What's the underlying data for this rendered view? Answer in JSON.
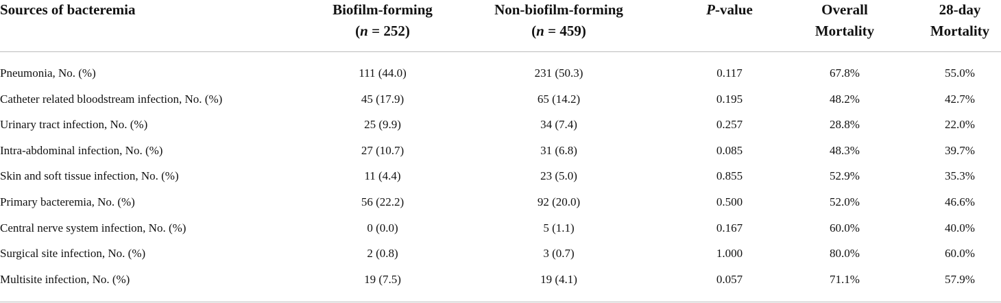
{
  "table": {
    "columns": [
      [
        [
          "Sources of bacteremia"
        ]
      ],
      [
        [
          "Biofilm-forming"
        ],
        [
          "(",
          {
            "text": "n",
            "italic": true
          },
          " = 252)"
        ]
      ],
      [
        [
          "Non-biofilm-forming"
        ],
        [
          "(",
          {
            "text": "n",
            "italic": true
          },
          " = 459)"
        ]
      ],
      [
        [
          {
            "text": "P",
            "italic": true
          },
          "-value"
        ]
      ],
      [
        [
          "Overall"
        ],
        [
          "Mortality"
        ]
      ],
      [
        [
          "28-day"
        ],
        [
          "Mortality"
        ]
      ]
    ],
    "rows": [
      [
        "Pneumonia, No. (%)",
        "111 (44.0)",
        "231 (50.3)",
        "0.117",
        "67.8%",
        "55.0%"
      ],
      [
        "Catheter related bloodstream infection, No. (%)",
        "45 (17.9)",
        "65 (14.2)",
        "0.195",
        "48.2%",
        "42.7%"
      ],
      [
        "Urinary tract infection, No. (%)",
        "25 (9.9)",
        "34 (7.4)",
        "0.257",
        "28.8%",
        "22.0%"
      ],
      [
        "Intra-abdominal infection, No. (%)",
        "27 (10.7)",
        "31 (6.8)",
        "0.085",
        "48.3%",
        "39.7%"
      ],
      [
        "Skin and soft tissue infection, No. (%)",
        "11 (4.4)",
        "23 (5.0)",
        "0.855",
        "52.9%",
        "35.3%"
      ],
      [
        "Primary bacteremia, No. (%)",
        "56 (22.2)",
        "92 (20.0)",
        "0.500",
        "52.0%",
        "46.6%"
      ],
      [
        "Central nerve system infection, No. (%)",
        "0 (0.0)",
        "5 (1.1)",
        "0.167",
        "60.0%",
        "40.0%"
      ],
      [
        "Surgical site infection, No. (%)",
        "2 (0.8)",
        "3 (0.7)",
        "1.000",
        "80.0%",
        "60.0%"
      ],
      [
        "Multisite infection, No. (%)",
        "19 (7.5)",
        "19 (4.1)",
        "0.057",
        "71.1%",
        "57.9%"
      ]
    ]
  }
}
